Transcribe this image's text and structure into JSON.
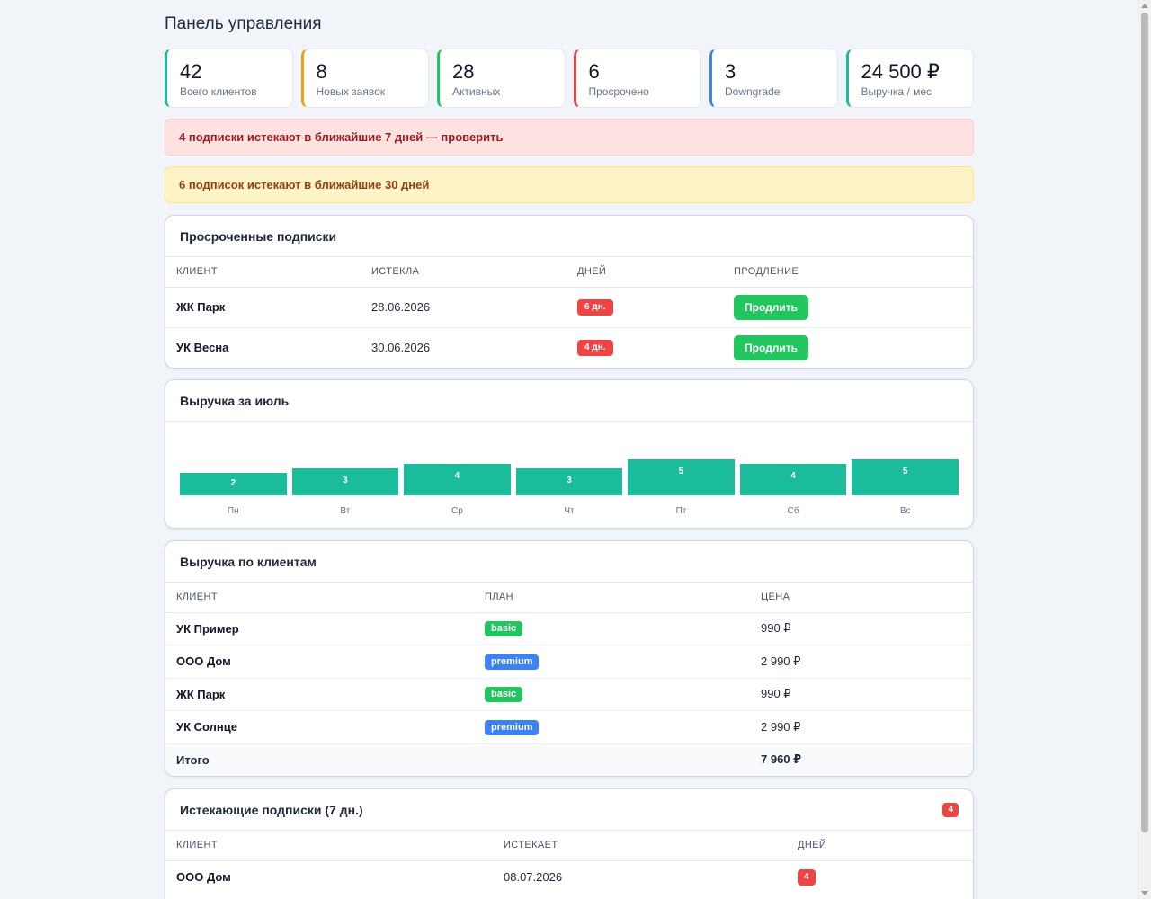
{
  "page": {
    "title": "Панель управления"
  },
  "stats": [
    {
      "value": "42",
      "label": "Всего клиентов",
      "color": "#1abc9c"
    },
    {
      "value": "8",
      "label": "Новых заявок",
      "color": "#f59e0b"
    },
    {
      "value": "28",
      "label": "Активных",
      "color": "#22c55e"
    },
    {
      "value": "6",
      "label": "Просрочено",
      "color": "#ef4444"
    },
    {
      "value": "3",
      "label": "Downgrade",
      "color": "#3b82f6"
    },
    {
      "value": "24 500 ₽",
      "label": "Выручка / мес",
      "color": "#1abc9c"
    }
  ],
  "alerts": {
    "red": "4 подписки истекают в ближайшие 7 дней — проверить",
    "yellow": "6 подписок истекают в ближайшие 30 дней"
  },
  "overdue": {
    "title": "Просроченные подписки",
    "headers": [
      "КЛИЕНТ",
      "ИСТЕКЛА",
      "ДНЕЙ",
      "ПРОДЛЕНИЕ"
    ],
    "rows": [
      {
        "client": "ЖК Парк",
        "expired": "28.06.2026",
        "days": "6 дн.",
        "action": "Продлить"
      },
      {
        "client": "УК Весна",
        "expired": "30.06.2026",
        "days": "4 дн.",
        "action": "Продлить"
      }
    ]
  },
  "revenue_chart": {
    "title": "Выручка за июль",
    "chart_data": {
      "type": "bar",
      "categories": [
        "Пн",
        "Вт",
        "Ср",
        "Чт",
        "Пт",
        "Сб",
        "Вс"
      ],
      "values": [
        2,
        3,
        4,
        3,
        5,
        4,
        5
      ],
      "title": "Выручка за июль",
      "bar_color": "#1abc9c"
    }
  },
  "by_client": {
    "title": "Выручка по клиентам",
    "headers": [
      "КЛИЕНТ",
      "ПЛАН",
      "ЦЕНА"
    ],
    "rows": [
      {
        "client": "УК Пример",
        "plan": "basic",
        "price": "990 ₽"
      },
      {
        "client": "ООО Дом",
        "plan": "premium",
        "price": "2 990 ₽"
      },
      {
        "client": "ЖК Парк",
        "plan": "basic",
        "price": "990 ₽"
      },
      {
        "client": "УК Солнце",
        "plan": "premium",
        "price": "2 990 ₽"
      }
    ],
    "total_label": "Итого",
    "total_value": "7 960 ₽",
    "plan_colors": {
      "basic": "#22c55e",
      "premium": "#3b82f6"
    }
  },
  "expiring": {
    "title": "Истекающие подписки (7 дн.)",
    "count": "4",
    "headers": [
      "КЛИЕНТ",
      "ИСТЕКАЕТ",
      "ДНЕЙ"
    ],
    "rows": [
      {
        "client": "ООО Дом",
        "expires": "08.07.2026",
        "days": "4"
      }
    ]
  }
}
